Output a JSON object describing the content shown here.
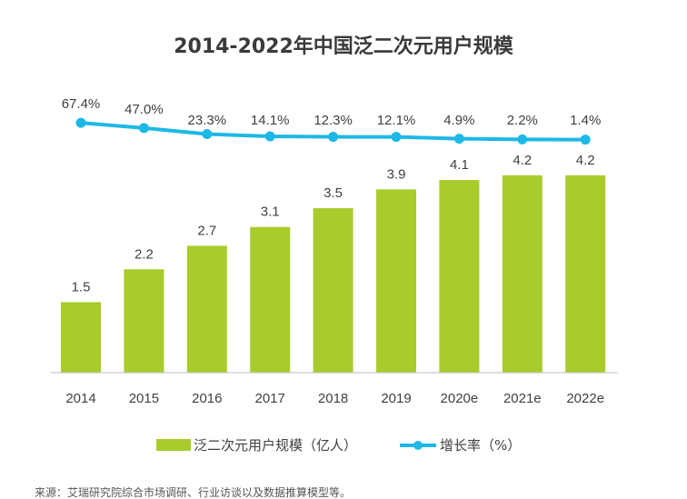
{
  "chart_data": {
    "type": "bar+line",
    "title": "2014-2022年中国泛二次元用户规模",
    "categories": [
      "2014",
      "2015",
      "2016",
      "2017",
      "2018",
      "2019",
      "2020e",
      "2021e",
      "2022e"
    ],
    "series": [
      {
        "name": "泛二次元用户规模（亿人）",
        "type": "bar",
        "color": "#a8cc2c",
        "values": [
          1.5,
          2.2,
          2.7,
          3.1,
          3.5,
          3.9,
          4.1,
          4.2,
          4.2
        ],
        "labels": [
          "1.5",
          "2.2",
          "2.7",
          "3.1",
          "3.5",
          "3.9",
          "4.1",
          "4.2",
          "4.2"
        ]
      },
      {
        "name": "增长率（%）",
        "type": "line",
        "color": "#1eb8e6",
        "values": [
          67.4,
          47.0,
          23.3,
          14.1,
          12.3,
          12.1,
          4.9,
          2.2,
          1.4
        ],
        "labels": [
          "67.4%",
          "47.0%",
          "23.3%",
          "14.1%",
          "12.3%",
          "12.1%",
          "4.9%",
          "2.2%",
          "1.4%"
        ]
      }
    ],
    "grid": false,
    "legend": "bottom",
    "source": "来源：艾瑞研究院综合市场调研、行业访谈以及数据推算模型等。"
  }
}
